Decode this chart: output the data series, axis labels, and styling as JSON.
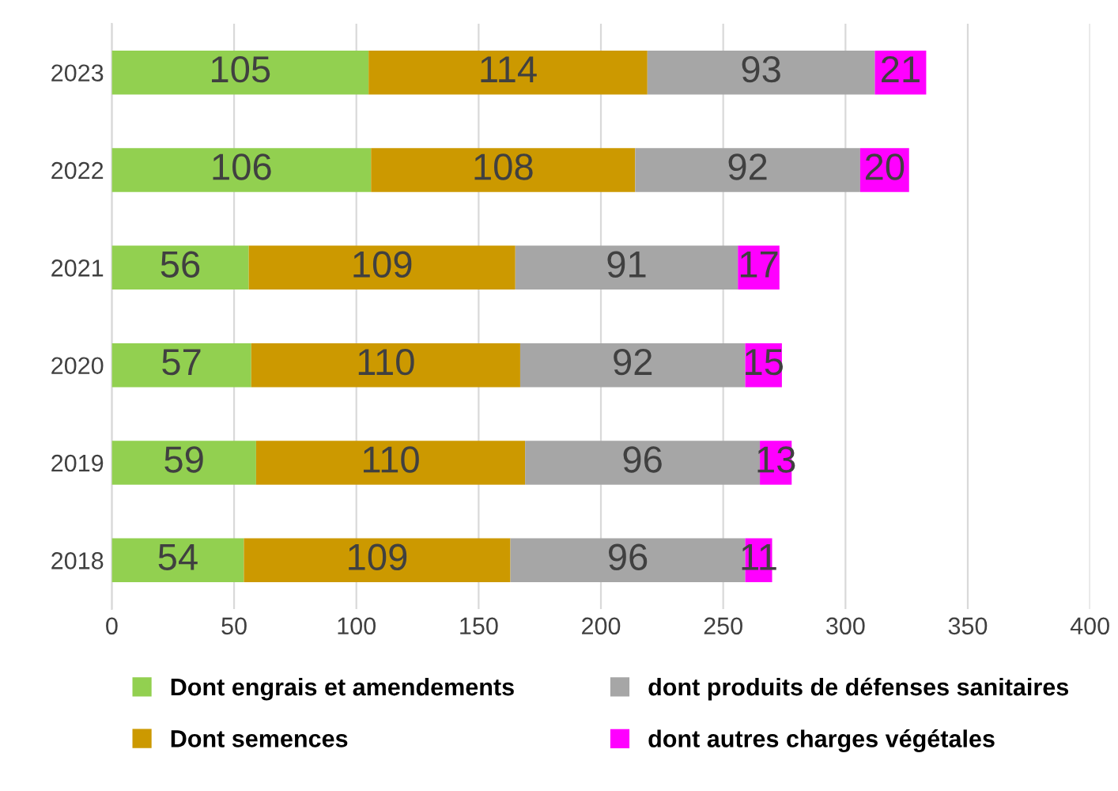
{
  "chart_data": {
    "type": "bar",
    "orientation": "horizontal",
    "stacked": true,
    "categories": [
      "2023",
      "2022",
      "2021",
      "2020",
      "2019",
      "2018"
    ],
    "series": [
      {
        "name": "Dont engrais et amendements",
        "color": "#92d050",
        "values": [
          105,
          106,
          56,
          57,
          59,
          54
        ]
      },
      {
        "name": "Dont semences",
        "color": "#cc9900",
        "values": [
          114,
          108,
          109,
          110,
          110,
          109
        ]
      },
      {
        "name": "dont produits de défenses sanitaires",
        "color": "#a6a6a6",
        "values": [
          93,
          92,
          91,
          92,
          96,
          96
        ]
      },
      {
        "name": "dont autres charges végétales",
        "color": "#ff00ff",
        "values": [
          21,
          20,
          17,
          15,
          13,
          11
        ]
      }
    ],
    "xlim": [
      0,
      400
    ],
    "xticks": [
      0,
      50,
      100,
      150,
      200,
      250,
      300,
      350,
      400
    ],
    "grid": "x",
    "legend": "bottom",
    "data_labels": true
  }
}
